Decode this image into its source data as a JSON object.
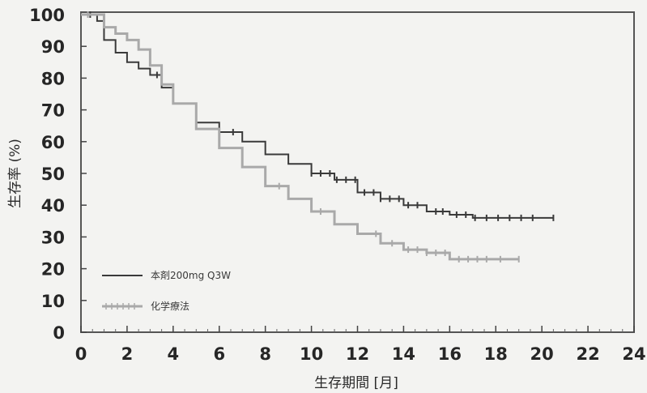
{
  "chart_data": {
    "type": "line",
    "title": "",
    "xlabel": "生存期間 [月]",
    "ylabel": "生存率 (%)",
    "xlim": [
      0,
      24
    ],
    "ylim": [
      0,
      100
    ],
    "xticks": [
      0,
      2,
      4,
      6,
      8,
      10,
      12,
      14,
      16,
      18,
      20,
      22,
      24
    ],
    "yticks": [
      0,
      10,
      20,
      30,
      40,
      50,
      60,
      70,
      80,
      90,
      100
    ],
    "grid": false,
    "legend_position": "lower-left",
    "series": [
      {
        "name": "本剤200mg Q3W",
        "color": "#3a3a3a",
        "x": [
          0,
          0.7,
          1.0,
          1.5,
          2.0,
          2.5,
          3.0,
          3.5,
          4.0,
          5.0,
          6.0,
          7.0,
          8.0,
          9.0,
          10.0,
          11.0,
          12.0,
          13.0,
          14.0,
          15.0,
          16.0,
          17.0,
          20.5
        ],
        "y": [
          100,
          98,
          92,
          88,
          85,
          83,
          81,
          77,
          72,
          66,
          63,
          60,
          56,
          53,
          50,
          48,
          44,
          42,
          40,
          38,
          37,
          36,
          36
        ],
        "censored_x": [
          0.4,
          3.3,
          6.6,
          10.0,
          10.4,
          10.8,
          11.1,
          11.5,
          11.9,
          12.3,
          12.7,
          13.0,
          13.4,
          13.8,
          14.2,
          14.6,
          15.4,
          15.7,
          16.3,
          16.7,
          17.1,
          17.6,
          18.1,
          18.6,
          19.1,
          19.6,
          20.5
        ]
      },
      {
        "name": "化学療法",
        "color": "#a9a9a9",
        "x": [
          0,
          0.5,
          1.0,
          1.5,
          2.0,
          2.5,
          3.0,
          3.5,
          4.0,
          5.0,
          6.0,
          7.0,
          8.0,
          9.0,
          10.0,
          11.0,
          12.0,
          13.0,
          14.0,
          15.0,
          16.0,
          17.0,
          19.0
        ],
        "y": [
          100,
          100,
          96,
          94,
          92,
          89,
          84,
          78,
          72,
          64,
          58,
          52,
          46,
          42,
          38,
          34,
          31,
          28,
          26,
          25,
          23,
          23,
          23
        ],
        "censored_x": [
          0.3,
          8.6,
          10.4,
          12.8,
          13.5,
          14.2,
          14.6,
          15.0,
          15.4,
          15.8,
          16.4,
          16.8,
          17.2,
          17.6,
          18.2,
          19.0
        ]
      }
    ]
  }
}
